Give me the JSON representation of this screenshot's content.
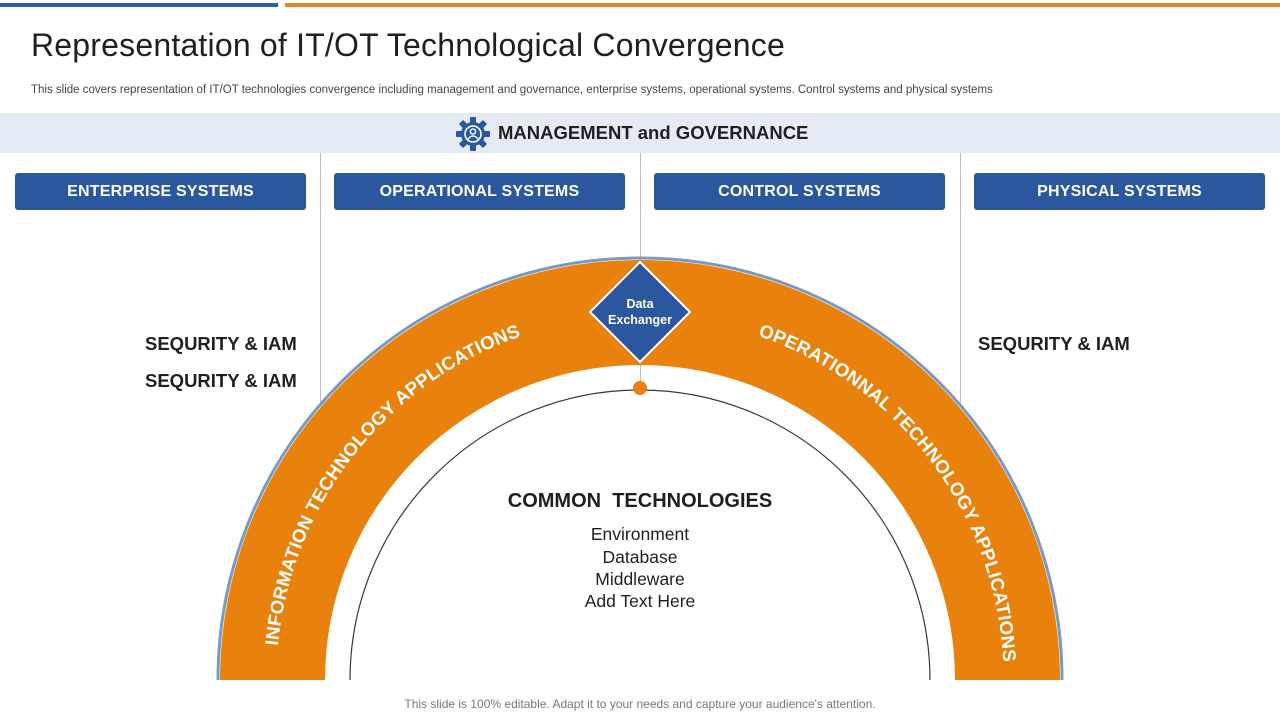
{
  "title": "Representation of IT/OT Technological Convergence",
  "subtitle": "This slide covers representation of IT/OT technologies convergence including management and governance, enterprise systems, operational systems. Control systems and physical systems",
  "management": {
    "label": "MANAGEMENT and GOVERNANCE",
    "icon": "gear-icon"
  },
  "systems": [
    {
      "label": "ENTERPRISE SYSTEMS"
    },
    {
      "label": "OPERATIONAL SYSTEMS"
    },
    {
      "label": "CONTROL SYSTEMS"
    },
    {
      "label": "PHYSICAL SYSTEMS"
    }
  ],
  "security_labels": {
    "left_1": "SEQURITY & IAM",
    "left_2": "SEQURITY & IAM",
    "right_1": "SEQURITY & IAM"
  },
  "arch": {
    "left_text": "INFORMATION TECHNOLOGY APPLICATIONS",
    "right_text": "OPERATIONNAL TECHNOLOGY APPLICATIONS",
    "diamond_line1": "Data",
    "diamond_line2": "Exchanger"
  },
  "common": {
    "heading": "COMMON  TECHNOLOGIES",
    "items": [
      "Environment",
      "Database",
      "Middleware",
      "Add Text Here"
    ]
  },
  "footer": "This slide is 100% editable. Adapt it to your needs and capture your audience's attention.",
  "colors": {
    "brand_blue": "#2a579e",
    "accent_orange": "#e8820c",
    "band_background": "#e4ebf4"
  }
}
